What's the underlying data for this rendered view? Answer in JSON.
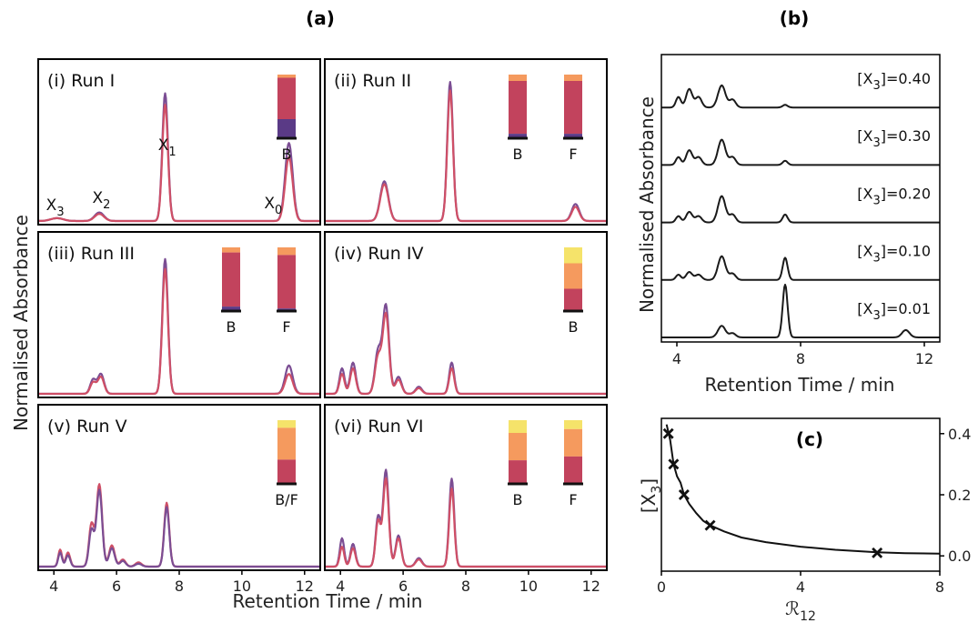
{
  "figure": {
    "label_a": "(a)",
    "label_b": "(b)",
    "label_c": "(c)",
    "a_xlabel": "Retention Time / min",
    "a_ylabel": "Normalised Absorbance",
    "b_xlabel": "Retention Time / min",
    "b_ylabel": "Normalised Absorbance",
    "c_xlabel_main": "ℛ",
    "c_xlabel_sub": "12",
    "c_ylabel_main": "[X",
    "c_ylabel_sub": "3",
    "c_ylabel_close": "]"
  },
  "colors": {
    "purple": "#7b4d93",
    "pink": "#cf4f66",
    "bar_dark": "#5a3a86",
    "bar_crimson": "#c2435d",
    "bar_orange": "#f59a5e",
    "bar_yellow": "#f5e36a"
  },
  "chart_data": [
    {
      "type": "line",
      "panel": "(a)",
      "title": "(i) Run I",
      "xlim": [
        3.5,
        12.5
      ],
      "xticks": [
        "4",
        "6",
        "8",
        "10",
        "12"
      ],
      "peak_labels": [
        {
          "label": "X",
          "sub": "3",
          "x": 4.1
        },
        {
          "label": "X",
          "sub": "2",
          "x": 5.4
        },
        {
          "label": "X",
          "sub": "1",
          "x": 7.5
        },
        {
          "label": "X",
          "sub": "0",
          "x": 11.0
        }
      ],
      "series": [
        {
          "color": "purple",
          "peaks": [
            [
              4.1,
              0.02,
              0.2
            ],
            [
              5.45,
              0.06,
              0.15
            ],
            [
              7.55,
              0.9,
              0.09
            ],
            [
              11.5,
              0.55,
              0.12
            ]
          ]
        },
        {
          "color": "pink",
          "peaks": [
            [
              4.1,
              0.02,
              0.2
            ],
            [
              5.45,
              0.05,
              0.15
            ],
            [
              7.55,
              0.82,
              0.09
            ],
            [
              11.5,
              0.45,
              0.12
            ]
          ]
        }
      ],
      "bars": [
        {
          "label": "B",
          "segments": [
            {
              "color": "bar_orange",
              "frac": 0.05
            },
            {
              "color": "bar_crimson",
              "frac": 0.65
            },
            {
              "color": "bar_dark",
              "frac": 0.3
            }
          ]
        }
      ]
    },
    {
      "type": "line",
      "panel": "(a)",
      "title": "(ii) Run II",
      "xlim": [
        3.5,
        12.5
      ],
      "xticks": [
        "4",
        "6",
        "8",
        "10",
        "12"
      ],
      "peak_labels": [],
      "series": [
        {
          "color": "purple",
          "peaks": [
            [
              5.4,
              0.28,
              0.13
            ],
            [
              7.5,
              0.98,
              0.09
            ],
            [
              11.5,
              0.12,
              0.12
            ]
          ]
        },
        {
          "color": "pink",
          "peaks": [
            [
              5.4,
              0.26,
              0.13
            ],
            [
              7.5,
              0.92,
              0.09
            ],
            [
              11.5,
              0.1,
              0.12
            ]
          ]
        }
      ],
      "bars": [
        {
          "label": "B",
          "segments": [
            {
              "color": "bar_orange",
              "frac": 0.1
            },
            {
              "color": "bar_crimson",
              "frac": 0.83
            },
            {
              "color": "bar_dark",
              "frac": 0.07
            }
          ]
        },
        {
          "label": "F",
          "segments": [
            {
              "color": "bar_orange",
              "frac": 0.1
            },
            {
              "color": "bar_crimson",
              "frac": 0.83
            },
            {
              "color": "bar_dark",
              "frac": 0.07
            }
          ]
        }
      ]
    },
    {
      "type": "line",
      "panel": "(a)",
      "title": "(iii) Run III",
      "xlim": [
        3.5,
        12.5
      ],
      "xticks": [
        "4",
        "6",
        "8",
        "10",
        "12"
      ],
      "peak_labels": [],
      "series": [
        {
          "color": "purple",
          "peaks": [
            [
              5.25,
              0.1,
              0.09
            ],
            [
              5.5,
              0.14,
              0.1
            ],
            [
              7.55,
              0.95,
              0.09
            ],
            [
              11.5,
              0.2,
              0.12
            ]
          ]
        },
        {
          "color": "pink",
          "peaks": [
            [
              5.25,
              0.08,
              0.09
            ],
            [
              5.5,
              0.12,
              0.1
            ],
            [
              7.55,
              0.88,
              0.09
            ],
            [
              11.5,
              0.14,
              0.12
            ]
          ]
        }
      ],
      "bars": [
        {
          "label": "B",
          "segments": [
            {
              "color": "bar_orange",
              "frac": 0.08
            },
            {
              "color": "bar_crimson",
              "frac": 0.85
            },
            {
              "color": "bar_dark",
              "frac": 0.07
            }
          ]
        },
        {
          "label": "F",
          "segments": [
            {
              "color": "bar_orange",
              "frac": 0.12
            },
            {
              "color": "bar_crimson",
              "frac": 0.84
            },
            {
              "color": "bar_dark",
              "frac": 0.04
            }
          ]
        }
      ]
    },
    {
      "type": "line",
      "panel": "(a)",
      "title": "(iv) Run IV",
      "xlim": [
        3.5,
        12.5
      ],
      "xticks": [
        "4",
        "6",
        "8",
        "10",
        "12"
      ],
      "peak_labels": [],
      "series": [
        {
          "color": "purple",
          "peaks": [
            [
              4.05,
              0.18,
              0.08
            ],
            [
              4.4,
              0.22,
              0.09
            ],
            [
              5.2,
              0.3,
              0.1
            ],
            [
              5.45,
              0.62,
              0.1
            ],
            [
              5.85,
              0.12,
              0.1
            ],
            [
              6.5,
              0.05,
              0.1
            ],
            [
              7.55,
              0.22,
              0.08
            ]
          ]
        },
        {
          "color": "pink",
          "peaks": [
            [
              4.05,
              0.14,
              0.08
            ],
            [
              4.4,
              0.18,
              0.09
            ],
            [
              5.2,
              0.26,
              0.1
            ],
            [
              5.45,
              0.56,
              0.1
            ],
            [
              5.85,
              0.1,
              0.1
            ],
            [
              6.5,
              0.04,
              0.1
            ],
            [
              7.55,
              0.18,
              0.08
            ]
          ]
        }
      ],
      "bars": [
        {
          "label": "B",
          "segments": [
            {
              "color": "bar_yellow",
              "frac": 0.25
            },
            {
              "color": "bar_orange",
              "frac": 0.4
            },
            {
              "color": "bar_crimson",
              "frac": 0.35
            }
          ]
        }
      ]
    },
    {
      "type": "line",
      "panel": "(a)",
      "title": "(v) Run V",
      "xlim": [
        3.5,
        12.5
      ],
      "xticks": [
        "4",
        "6",
        "8",
        "10",
        "12"
      ],
      "peak_labels": [],
      "series": [
        {
          "color": "pink",
          "peaks": [
            [
              4.2,
              0.12,
              0.06
            ],
            [
              4.45,
              0.1,
              0.07
            ],
            [
              5.2,
              0.3,
              0.08
            ],
            [
              5.45,
              0.58,
              0.09
            ],
            [
              5.85,
              0.15,
              0.09
            ],
            [
              6.2,
              0.05,
              0.09
            ],
            [
              6.7,
              0.03,
              0.1
            ],
            [
              7.6,
              0.45,
              0.08
            ]
          ]
        },
        {
          "color": "purple",
          "peaks": [
            [
              4.2,
              0.1,
              0.06
            ],
            [
              4.45,
              0.08,
              0.07
            ],
            [
              5.2,
              0.26,
              0.08
            ],
            [
              5.45,
              0.54,
              0.09
            ],
            [
              5.85,
              0.13,
              0.09
            ],
            [
              6.2,
              0.04,
              0.09
            ],
            [
              6.7,
              0.02,
              0.1
            ],
            [
              7.6,
              0.42,
              0.08
            ]
          ]
        }
      ],
      "bars": [
        {
          "label": "B/F",
          "segments": [
            {
              "color": "bar_yellow",
              "frac": 0.12
            },
            {
              "color": "bar_orange",
              "frac": 0.5
            },
            {
              "color": "bar_crimson",
              "frac": 0.38
            }
          ]
        }
      ]
    },
    {
      "type": "line",
      "panel": "(a)",
      "title": "(vi) Run VI",
      "xlim": [
        3.5,
        12.5
      ],
      "xticks": [
        "4",
        "6",
        "8",
        "10",
        "12"
      ],
      "peak_labels": [],
      "series": [
        {
          "color": "purple",
          "peaks": [
            [
              4.05,
              0.2,
              0.07
            ],
            [
              4.4,
              0.16,
              0.08
            ],
            [
              5.2,
              0.35,
              0.08
            ],
            [
              5.45,
              0.68,
              0.09
            ],
            [
              5.85,
              0.22,
              0.09
            ],
            [
              6.5,
              0.06,
              0.1
            ],
            [
              7.55,
              0.62,
              0.08
            ]
          ]
        },
        {
          "color": "pink",
          "peaks": [
            [
              4.05,
              0.14,
              0.07
            ],
            [
              4.4,
              0.13,
              0.08
            ],
            [
              5.2,
              0.32,
              0.08
            ],
            [
              5.45,
              0.62,
              0.09
            ],
            [
              5.85,
              0.2,
              0.09
            ],
            [
              6.5,
              0.05,
              0.1
            ],
            [
              7.55,
              0.55,
              0.08
            ]
          ]
        }
      ],
      "bars": [
        {
          "label": "B",
          "segments": [
            {
              "color": "bar_yellow",
              "frac": 0.2
            },
            {
              "color": "bar_orange",
              "frac": 0.43
            },
            {
              "color": "bar_crimson",
              "frac": 0.37
            }
          ]
        },
        {
          "label": "F",
          "segments": [
            {
              "color": "bar_yellow",
              "frac": 0.14
            },
            {
              "color": "bar_orange",
              "frac": 0.43
            },
            {
              "color": "bar_crimson",
              "frac": 0.43
            }
          ]
        }
      ]
    },
    {
      "type": "line",
      "panel": "(b)",
      "xlim": [
        3.5,
        12.5
      ],
      "xticks": [
        "4",
        "8",
        "12"
      ],
      "xlabel": "Retention Time / min",
      "ylabel": "Normalised Absorbance",
      "series": [
        {
          "label_prefix": "[X",
          "label_sub": "3",
          "label_value": "]=0.40",
          "peaks": [
            [
              4.05,
              0.2,
              0.08
            ],
            [
              4.4,
              0.35,
              0.1
            ],
            [
              4.7,
              0.2,
              0.1
            ],
            [
              5.45,
              0.42,
              0.12
            ],
            [
              5.8,
              0.15,
              0.1
            ],
            [
              7.5,
              0.05,
              0.08
            ]
          ]
        },
        {
          "label_prefix": "[X",
          "label_sub": "3",
          "label_value": "]=0.30",
          "peaks": [
            [
              4.05,
              0.15,
              0.08
            ],
            [
              4.4,
              0.28,
              0.1
            ],
            [
              4.7,
              0.15,
              0.1
            ],
            [
              5.45,
              0.48,
              0.12
            ],
            [
              5.8,
              0.15,
              0.1
            ],
            [
              7.5,
              0.08,
              0.08
            ]
          ]
        },
        {
          "label_prefix": "[X",
          "label_sub": "3",
          "label_value": "]=0.20",
          "peaks": [
            [
              4.05,
              0.12,
              0.08
            ],
            [
              4.4,
              0.2,
              0.1
            ],
            [
              4.7,
              0.12,
              0.1
            ],
            [
              5.45,
              0.5,
              0.12
            ],
            [
              5.8,
              0.15,
              0.1
            ],
            [
              7.5,
              0.15,
              0.08
            ]
          ]
        },
        {
          "label_prefix": "[X",
          "label_sub": "3",
          "label_value": "]=0.10",
          "peaks": [
            [
              4.05,
              0.1,
              0.08
            ],
            [
              4.4,
              0.15,
              0.1
            ],
            [
              4.7,
              0.1,
              0.1
            ],
            [
              5.45,
              0.45,
              0.12
            ],
            [
              5.8,
              0.12,
              0.1
            ],
            [
              7.5,
              0.42,
              0.08
            ]
          ]
        },
        {
          "label_prefix": "[X",
          "label_sub": "3",
          "label_value": "]=0.01",
          "peaks": [
            [
              5.45,
              0.22,
              0.12
            ],
            [
              5.8,
              0.08,
              0.1
            ],
            [
              7.5,
              1.0,
              0.08
            ],
            [
              11.4,
              0.14,
              0.12
            ]
          ]
        }
      ]
    },
    {
      "type": "scatter",
      "panel": "(c)",
      "xlim": [
        0,
        8
      ],
      "ylim": [
        -0.05,
        0.45
      ],
      "xticks": [
        0,
        4,
        8
      ],
      "yticks": [
        0.0,
        0.2,
        0.4
      ],
      "points": [
        {
          "x": 0.2,
          "y": 0.4
        },
        {
          "x": 0.35,
          "y": 0.3
        },
        {
          "x": 0.65,
          "y": 0.2
        },
        {
          "x": 1.4,
          "y": 0.1
        },
        {
          "x": 6.2,
          "y": 0.01
        }
      ],
      "curve": [
        [
          0.15,
          0.43
        ],
        [
          0.25,
          0.38
        ],
        [
          0.35,
          0.3
        ],
        [
          0.45,
          0.26
        ],
        [
          0.55,
          0.24
        ],
        [
          0.65,
          0.2
        ],
        [
          0.8,
          0.17
        ],
        [
          1.0,
          0.14
        ],
        [
          1.2,
          0.115
        ],
        [
          1.4,
          0.1
        ],
        [
          1.8,
          0.08
        ],
        [
          2.3,
          0.06
        ],
        [
          3.0,
          0.045
        ],
        [
          4.0,
          0.03
        ],
        [
          5.0,
          0.02
        ],
        [
          6.2,
          0.012
        ],
        [
          7.0,
          0.009
        ],
        [
          8.0,
          0.007
        ]
      ]
    }
  ]
}
